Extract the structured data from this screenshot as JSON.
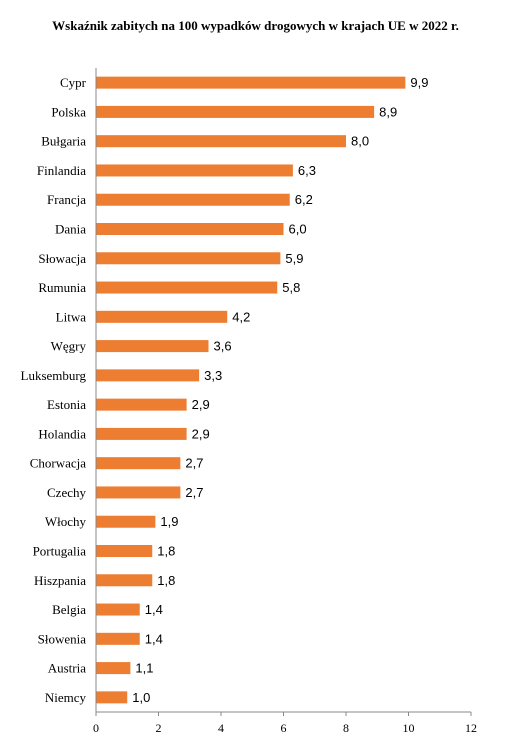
{
  "chart_data": {
    "type": "bar",
    "orientation": "horizontal",
    "title": "Wskaźnik zabitych na 100 wypadków drogowych w krajach UE w 2022 r.",
    "categories": [
      "Cypr",
      "Polska",
      "Bułgaria",
      "Finlandia",
      "Francja",
      "Dania",
      "Słowacja",
      "Rumunia",
      "Litwa",
      "Węgry",
      "Luksemburg",
      "Estonia",
      "Holandia",
      "Chorwacja",
      "Czechy",
      "Włochy",
      "Portugalia",
      "Hiszpania",
      "Belgia",
      "Słowenia",
      "Austria",
      "Niemcy"
    ],
    "values": [
      9.9,
      8.9,
      8.0,
      6.3,
      6.2,
      6.0,
      5.9,
      5.8,
      4.2,
      3.6,
      3.3,
      2.9,
      2.9,
      2.7,
      2.7,
      1.9,
      1.8,
      1.8,
      1.4,
      1.4,
      1.1,
      1.0
    ],
    "value_labels": [
      "9,9",
      "8,9",
      "8,0",
      "6,3",
      "6,2",
      "6,0",
      "5,9",
      "5,8",
      "4,2",
      "3,6",
      "3,3",
      "2,9",
      "2,9",
      "2,7",
      "2,7",
      "1,9",
      "1,8",
      "1,8",
      "1,4",
      "1,4",
      "1,1",
      "1,0"
    ],
    "xlim": [
      0,
      12
    ],
    "xticks": [
      0,
      2,
      4,
      6,
      8,
      10,
      12
    ],
    "grid": false,
    "legend": "none",
    "bar_color": "#ED7D31"
  }
}
